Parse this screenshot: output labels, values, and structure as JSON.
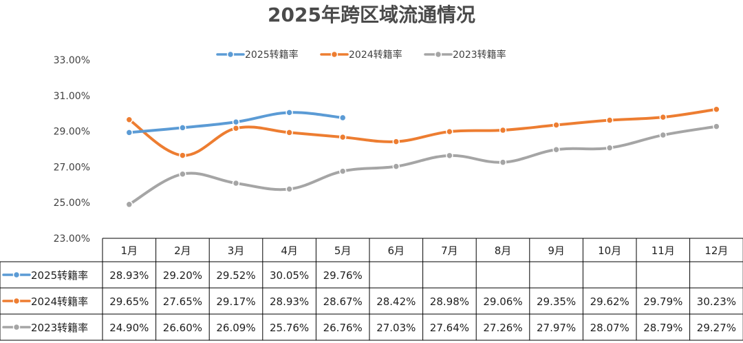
{
  "chart_data": {
    "type": "line",
    "title": "2025年跨区域流通情况",
    "categories": [
      "1月",
      "2月",
      "3月",
      "4月",
      "5月",
      "6月",
      "7月",
      "8月",
      "9月",
      "10月",
      "11月",
      "12月"
    ],
    "ylim": [
      23,
      33
    ],
    "yticks": [
      "23.00%",
      "25.00%",
      "27.00%",
      "29.00%",
      "31.00%",
      "33.00%"
    ],
    "grid": false,
    "legend_position": "top",
    "data_table": true,
    "series": [
      {
        "name": "2025转籍率",
        "color": "#5b9bd5",
        "values": [
          28.93,
          29.2,
          29.52,
          30.05,
          29.76,
          null,
          null,
          null,
          null,
          null,
          null,
          null
        ],
        "labels": [
          "28.93%",
          "29.20%",
          "29.52%",
          "30.05%",
          "29.76%",
          "",
          "",
          "",
          "",
          "",
          "",
          ""
        ]
      },
      {
        "name": "2024转籍率",
        "color": "#ed7d31",
        "values": [
          29.65,
          27.65,
          29.17,
          28.93,
          28.67,
          28.42,
          28.98,
          29.06,
          29.35,
          29.62,
          29.79,
          30.23
        ],
        "labels": [
          "29.65%",
          "27.65%",
          "29.17%",
          "28.93%",
          "28.67%",
          "28.42%",
          "28.98%",
          "29.06%",
          "29.35%",
          "29.62%",
          "29.79%",
          "30.23%"
        ]
      },
      {
        "name": "2023转籍率",
        "color": "#a5a5a5",
        "values": [
          24.9,
          26.6,
          26.09,
          25.76,
          26.76,
          27.03,
          27.64,
          27.26,
          27.97,
          28.07,
          28.79,
          29.27
        ],
        "labels": [
          "24.90%",
          "26.60%",
          "26.09%",
          "25.76%",
          "26.76%",
          "27.03%",
          "27.64%",
          "27.26%",
          "27.97%",
          "28.07%",
          "28.79%",
          "29.27%"
        ]
      }
    ]
  }
}
